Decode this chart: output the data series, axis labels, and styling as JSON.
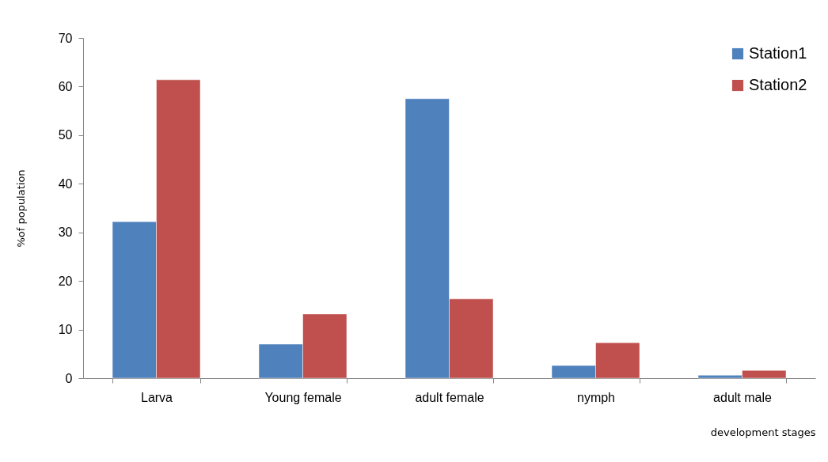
{
  "chart_data": {
    "type": "bar",
    "xlabel": "development stages",
    "ylabel": "%of population",
    "categories": [
      "Larva",
      "Young female",
      "adult female",
      "nymph",
      "adult male"
    ],
    "series": [
      {
        "name": "Station1",
        "color": "#4f81bd",
        "values": [
          32.2,
          7.0,
          57.5,
          2.6,
          0.6
        ]
      },
      {
        "name": "Station2",
        "color": "#c0504d",
        "values": [
          61.4,
          13.2,
          16.3,
          7.3,
          1.6
        ]
      }
    ],
    "ylim": [
      0,
      70
    ],
    "yticks": [
      0,
      10,
      20,
      30,
      40,
      50,
      60,
      70
    ],
    "grid": false,
    "legend": "top right"
  }
}
